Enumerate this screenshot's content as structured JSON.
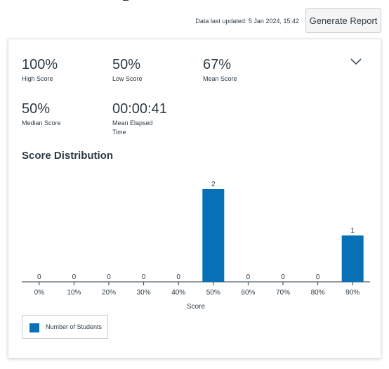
{
  "header": {
    "data_updated": "Data last updated: 5 Jan 2024, 15:42",
    "generate_report_label": "Generate Report"
  },
  "stats": {
    "high_score": {
      "value": "100%",
      "label": "High Score"
    },
    "low_score": {
      "value": "50%",
      "label": "Low Score"
    },
    "mean_score": {
      "value": "67%",
      "label": "Mean Score"
    },
    "median_score": {
      "value": "50%",
      "label": "Median Score"
    },
    "mean_elapsed": {
      "value": "00:00:41",
      "label_line1": "Mean Elapsed",
      "label_line2": "Time"
    }
  },
  "distribution_title": "Score Distribution",
  "legend_label": "Number of Students",
  "icons": {
    "collapse": "chevron-down-icon"
  },
  "colors": {
    "bar": "#0770b6",
    "text": "#2d3b45"
  },
  "chart_data": {
    "type": "bar",
    "categories": [
      "0%",
      "10%",
      "20%",
      "30%",
      "40%",
      "50%",
      "60%",
      "70%",
      "80%",
      "90%"
    ],
    "series": [
      {
        "name": "Number of Students",
        "values": [
          0,
          0,
          0,
          0,
          0,
          2,
          0,
          0,
          0,
          1
        ]
      }
    ],
    "xlabel": "Score",
    "ylabel": "",
    "ylim": [
      0,
      2
    ],
    "grid": false,
    "legend": "bottom-left"
  }
}
